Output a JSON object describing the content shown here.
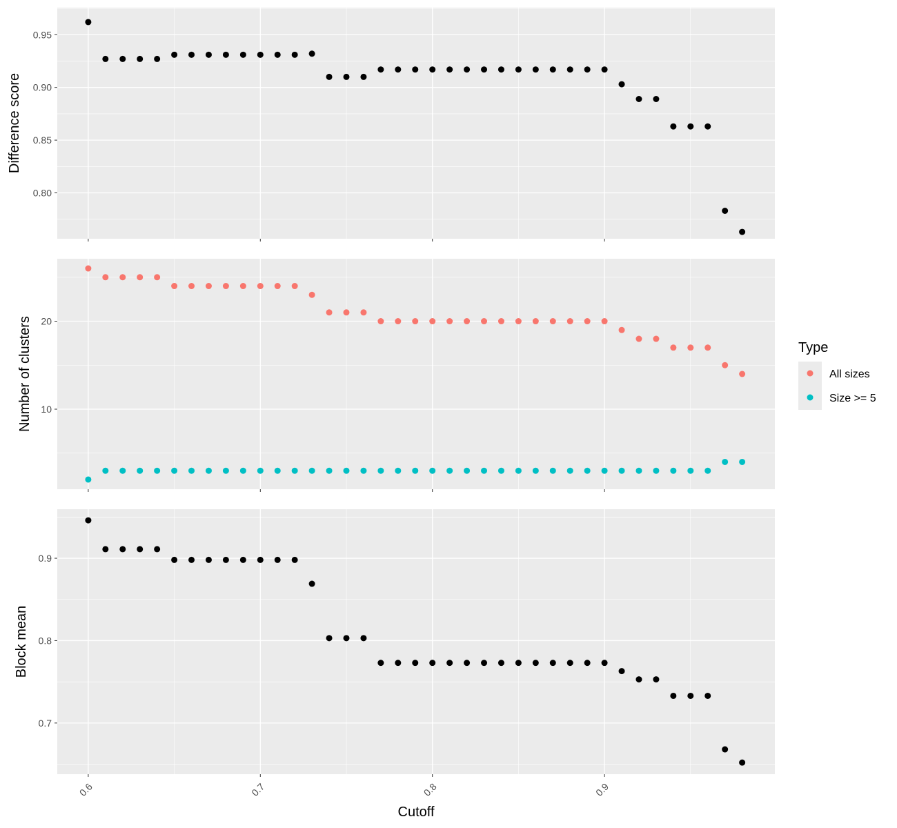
{
  "chart_data": [
    {
      "type": "scatter",
      "ylabel": "Difference score",
      "xlabel": "",
      "xlim": [
        0.582,
        0.999
      ],
      "ylim": [
        0.7565,
        0.9757
      ],
      "x_ticks": [
        0.6,
        0.7,
        0.8,
        0.9
      ],
      "y_ticks": [
        0.8,
        0.85,
        0.9,
        0.95
      ],
      "y_tick_labels": [
        "0.80",
        "0.85",
        "0.90",
        "0.95"
      ],
      "series": [
        {
          "color": "#000000",
          "x": [
            0.6,
            0.61,
            0.62,
            0.63,
            0.64,
            0.65,
            0.66,
            0.67,
            0.68,
            0.69,
            0.7,
            0.71,
            0.72,
            0.73,
            0.74,
            0.75,
            0.76,
            0.77,
            0.78,
            0.79,
            0.8,
            0.81,
            0.82,
            0.83,
            0.84,
            0.85,
            0.86,
            0.87,
            0.88,
            0.89,
            0.9,
            0.91,
            0.92,
            0.93,
            0.94,
            0.95,
            0.96,
            0.97,
            0.98
          ],
          "y": [
            0.962,
            0.927,
            0.927,
            0.927,
            0.927,
            0.931,
            0.931,
            0.931,
            0.931,
            0.931,
            0.931,
            0.931,
            0.931,
            0.932,
            0.91,
            0.91,
            0.91,
            0.917,
            0.917,
            0.917,
            0.917,
            0.917,
            0.917,
            0.917,
            0.917,
            0.917,
            0.917,
            0.917,
            0.917,
            0.917,
            0.917,
            0.903,
            0.889,
            0.889,
            0.863,
            0.863,
            0.863,
            0.783,
            0.763
          ]
        }
      ]
    },
    {
      "type": "scatter",
      "ylabel": "Number of clusters",
      "xlabel": "",
      "xlim": [
        0.582,
        0.999
      ],
      "ylim": [
        0.9,
        27.1
      ],
      "x_ticks": [
        0.6,
        0.7,
        0.8,
        0.9
      ],
      "y_ticks": [
        10,
        20
      ],
      "y_tick_labels": [
        "10",
        "20"
      ],
      "legend": {
        "title": "Type",
        "position": "right"
      },
      "series": [
        {
          "name": "All sizes",
          "color": "#F8766D",
          "x": [
            0.6,
            0.61,
            0.62,
            0.63,
            0.64,
            0.65,
            0.66,
            0.67,
            0.68,
            0.69,
            0.7,
            0.71,
            0.72,
            0.73,
            0.74,
            0.75,
            0.76,
            0.77,
            0.78,
            0.79,
            0.8,
            0.81,
            0.82,
            0.83,
            0.84,
            0.85,
            0.86,
            0.87,
            0.88,
            0.89,
            0.9,
            0.91,
            0.92,
            0.93,
            0.94,
            0.95,
            0.96,
            0.97,
            0.98
          ],
          "y": [
            26,
            25,
            25,
            25,
            25,
            24,
            24,
            24,
            24,
            24,
            24,
            24,
            24,
            23,
            21,
            21,
            21,
            20,
            20,
            20,
            20,
            20,
            20,
            20,
            20,
            20,
            20,
            20,
            20,
            20,
            20,
            19,
            18,
            18,
            17,
            17,
            17,
            15,
            14
          ]
        },
        {
          "name": "Size >= 5",
          "color": "#00BFC4",
          "x": [
            0.6,
            0.61,
            0.62,
            0.63,
            0.64,
            0.65,
            0.66,
            0.67,
            0.68,
            0.69,
            0.7,
            0.71,
            0.72,
            0.73,
            0.74,
            0.75,
            0.76,
            0.77,
            0.78,
            0.79,
            0.8,
            0.81,
            0.82,
            0.83,
            0.84,
            0.85,
            0.86,
            0.87,
            0.88,
            0.89,
            0.9,
            0.91,
            0.92,
            0.93,
            0.94,
            0.95,
            0.96,
            0.97,
            0.98
          ],
          "y": [
            2,
            3,
            3,
            3,
            3,
            3,
            3,
            3,
            3,
            3,
            3,
            3,
            3,
            3,
            3,
            3,
            3,
            3,
            3,
            3,
            3,
            3,
            3,
            3,
            3,
            3,
            3,
            3,
            3,
            3,
            3,
            3,
            3,
            3,
            3,
            3,
            3,
            4,
            4
          ]
        }
      ]
    },
    {
      "type": "scatter",
      "ylabel": "Block mean",
      "xlabel": "Cutoff",
      "xlim": [
        0.582,
        0.999
      ],
      "ylim": [
        0.6379,
        0.9595
      ],
      "x_ticks": [
        0.6,
        0.7,
        0.8,
        0.9
      ],
      "x_tick_labels": [
        "0.6",
        "0.7",
        "0.8",
        "0.9"
      ],
      "y_ticks": [
        0.7,
        0.8,
        0.9
      ],
      "y_tick_labels": [
        "0.7",
        "0.8",
        "0.9"
      ],
      "series": [
        {
          "color": "#000000",
          "x": [
            0.6,
            0.61,
            0.62,
            0.63,
            0.64,
            0.65,
            0.66,
            0.67,
            0.68,
            0.69,
            0.7,
            0.71,
            0.72,
            0.73,
            0.74,
            0.75,
            0.76,
            0.77,
            0.78,
            0.79,
            0.8,
            0.81,
            0.82,
            0.83,
            0.84,
            0.85,
            0.86,
            0.87,
            0.88,
            0.89,
            0.9,
            0.91,
            0.92,
            0.93,
            0.94,
            0.95,
            0.96,
            0.97,
            0.98
          ],
          "y": [
            0.946,
            0.911,
            0.911,
            0.911,
            0.911,
            0.898,
            0.898,
            0.898,
            0.898,
            0.898,
            0.898,
            0.898,
            0.898,
            0.869,
            0.803,
            0.803,
            0.803,
            0.773,
            0.773,
            0.773,
            0.773,
            0.773,
            0.773,
            0.773,
            0.773,
            0.773,
            0.773,
            0.773,
            0.773,
            0.773,
            0.773,
            0.763,
            0.753,
            0.753,
            0.733,
            0.733,
            0.733,
            0.668,
            0.652
          ]
        }
      ]
    }
  ],
  "colors": {
    "panel_background": "#EBEBEB",
    "grid": "#FFFFFF",
    "tick": "#333333"
  }
}
